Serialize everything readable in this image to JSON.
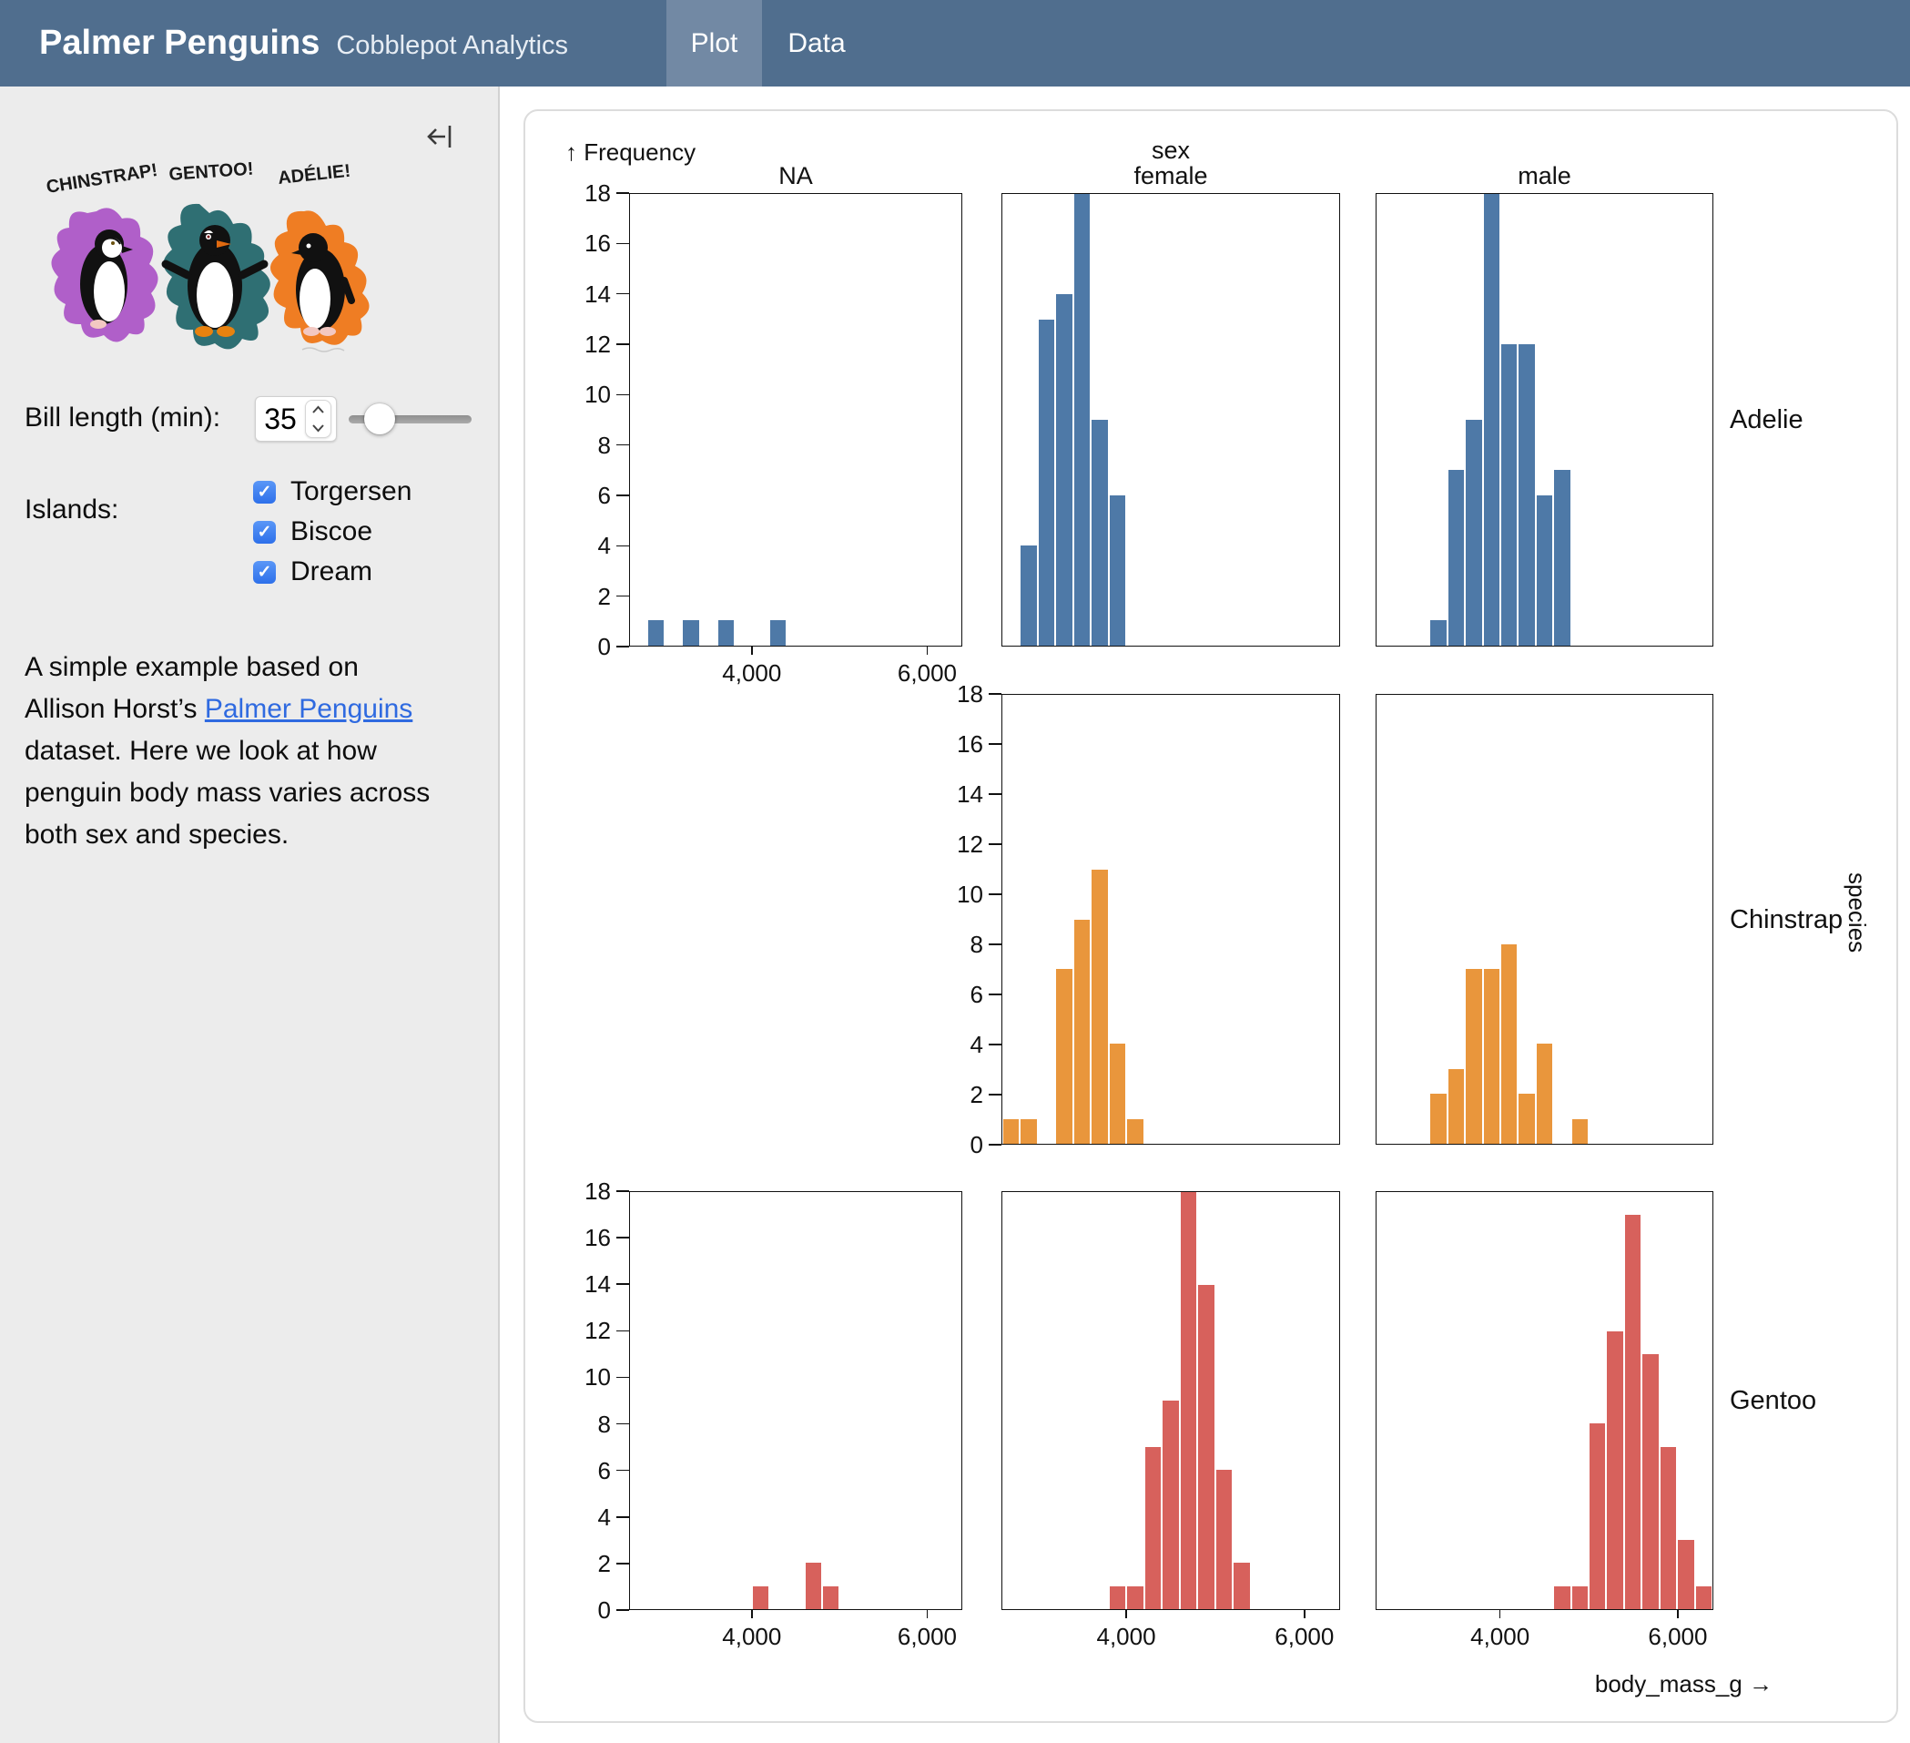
{
  "header": {
    "title": "Palmer Penguins",
    "subtitle": "Cobblepot Analytics",
    "tabs": [
      {
        "label": "Plot",
        "active": true
      },
      {
        "label": "Data",
        "active": false
      }
    ]
  },
  "sidebar": {
    "artwork": {
      "labels": [
        "CHINSTRAP!",
        "GENTOO!",
        "ADÉLIE!"
      ],
      "blob_colors": {
        "chinstrap": "#b05fc9",
        "gentoo": "#2f6f73",
        "adelie": "#ef7d23"
      }
    },
    "bill_length": {
      "label": "Bill length (min):",
      "value": "35",
      "slider_position": 0.24
    },
    "islands": {
      "label": "Islands:",
      "options": [
        {
          "label": "Torgersen",
          "checked": true
        },
        {
          "label": "Biscoe",
          "checked": true
        },
        {
          "label": "Dream",
          "checked": true
        }
      ]
    },
    "description": {
      "before_link": "A simple example based on Allison Horst’s ",
      "link_text": "Palmer Penguins",
      "after_link": " dataset. Here we look at how penguin body mass varies across both sex and species."
    }
  },
  "theme": {
    "header_bg": "#506e8e",
    "active_tab_bg": "#7289a4",
    "sidebar_bg": "#ececec",
    "checkbox_blue": "#3b7df2",
    "link_blue": "#2f6ae0"
  },
  "chart_data": {
    "type": "bar",
    "subtype": "faceted-histogram",
    "x_field": "body_mass_g",
    "y_field": "Frequency",
    "y_axis_title": "↑ Frequency",
    "x_axis_title": "body_mass_g →",
    "col_header": "sex",
    "row_header": "species",
    "col_facets": [
      "NA",
      "female",
      "male"
    ],
    "row_facets": [
      "Adelie",
      "Chinstrap",
      "Gentoo"
    ],
    "x_domain": [
      2600,
      6400
    ],
    "y_domain": [
      0,
      18
    ],
    "x_ticks": [
      4000,
      6000
    ],
    "x_tick_labels": [
      "4,000",
      "6,000"
    ],
    "y_ticks": [
      0,
      2,
      4,
      6,
      8,
      10,
      12,
      14,
      16,
      18
    ],
    "bin_width": 200,
    "grid": false,
    "colors": {
      "Adelie": "#4e79a7",
      "Chinstrap": "#e9963c",
      "Gentoo": "#d7615c"
    },
    "panels": [
      {
        "species": "Adelie",
        "sex": "NA",
        "bins": [
          [
            2800,
            1
          ],
          [
            3200,
            1
          ],
          [
            3600,
            1
          ],
          [
            4200,
            1
          ]
        ]
      },
      {
        "species": "Adelie",
        "sex": "female",
        "bins": [
          [
            2800,
            4
          ],
          [
            3000,
            13
          ],
          [
            3200,
            14
          ],
          [
            3400,
            18
          ],
          [
            3600,
            9
          ],
          [
            3800,
            6
          ]
        ]
      },
      {
        "species": "Adelie",
        "sex": "male",
        "bins": [
          [
            3200,
            1
          ],
          [
            3400,
            7
          ],
          [
            3600,
            9
          ],
          [
            3800,
            18
          ],
          [
            4000,
            12
          ],
          [
            4200,
            12
          ],
          [
            4400,
            6
          ],
          [
            4600,
            7
          ]
        ]
      },
      {
        "species": "Chinstrap",
        "sex": "female",
        "bins": [
          [
            2600,
            1
          ],
          [
            2800,
            1
          ],
          [
            3200,
            7
          ],
          [
            3400,
            9
          ],
          [
            3600,
            11
          ],
          [
            3800,
            4
          ],
          [
            4000,
            1
          ]
        ]
      },
      {
        "species": "Chinstrap",
        "sex": "male",
        "bins": [
          [
            3200,
            2
          ],
          [
            3400,
            3
          ],
          [
            3600,
            7
          ],
          [
            3800,
            7
          ],
          [
            4000,
            8
          ],
          [
            4200,
            2
          ],
          [
            4400,
            4
          ],
          [
            4800,
            1
          ]
        ]
      },
      {
        "species": "Gentoo",
        "sex": "NA",
        "bins": [
          [
            4000,
            1
          ],
          [
            4600,
            2
          ],
          [
            4800,
            1
          ]
        ]
      },
      {
        "species": "Gentoo",
        "sex": "female",
        "bins": [
          [
            3800,
            1
          ],
          [
            4000,
            1
          ],
          [
            4200,
            7
          ],
          [
            4400,
            9
          ],
          [
            4600,
            18
          ],
          [
            4800,
            14
          ],
          [
            5000,
            6
          ],
          [
            5200,
            2
          ]
        ]
      },
      {
        "species": "Gentoo",
        "sex": "male",
        "bins": [
          [
            4600,
            1
          ],
          [
            4800,
            1
          ],
          [
            5000,
            8
          ],
          [
            5200,
            12
          ],
          [
            5400,
            17
          ],
          [
            5600,
            11
          ],
          [
            5800,
            7
          ],
          [
            6000,
            3
          ],
          [
            6200,
            1
          ]
        ]
      }
    ]
  }
}
